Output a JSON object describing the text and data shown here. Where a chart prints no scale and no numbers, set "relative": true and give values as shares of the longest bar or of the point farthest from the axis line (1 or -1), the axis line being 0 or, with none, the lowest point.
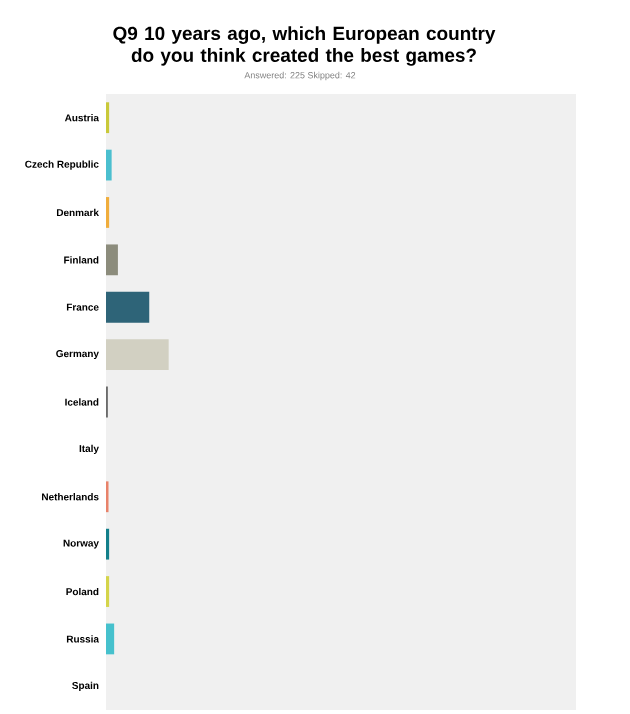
{
  "chart_data": {
    "type": "bar",
    "orientation": "horizontal",
    "relative": true,
    "title": "Q9 **10 years ago, which European country do you think created the best games?**",
    "subtitle": "Answered: 225    Skipped: 42",
    "categories": [
      "Austria",
      "Czech Republic",
      "Denmark",
      "Finland",
      "France",
      "Germany",
      "Iceland",
      "Italy",
      "Netherlands",
      "Norway",
      "Poland",
      "Russia",
      "Spain"
    ],
    "values": [
      0.05,
      0.09,
      0.05,
      0.19,
      0.69,
      1,
      0.03,
      0,
      0.04,
      0.05,
      0.05,
      0.13,
      0
    ],
    "colors": [
      "#c9c93a",
      "#4bbfcf",
      "#f0ad3c",
      "#8c8c7c",
      "#2e6478",
      "#d2d0c2",
      "#6b6b6b",
      "#d9534f",
      "#e8826a",
      "#127f8a",
      "#d4d44a",
      "#46c1cd",
      "#f0a030"
    ],
    "grid": false
  }
}
